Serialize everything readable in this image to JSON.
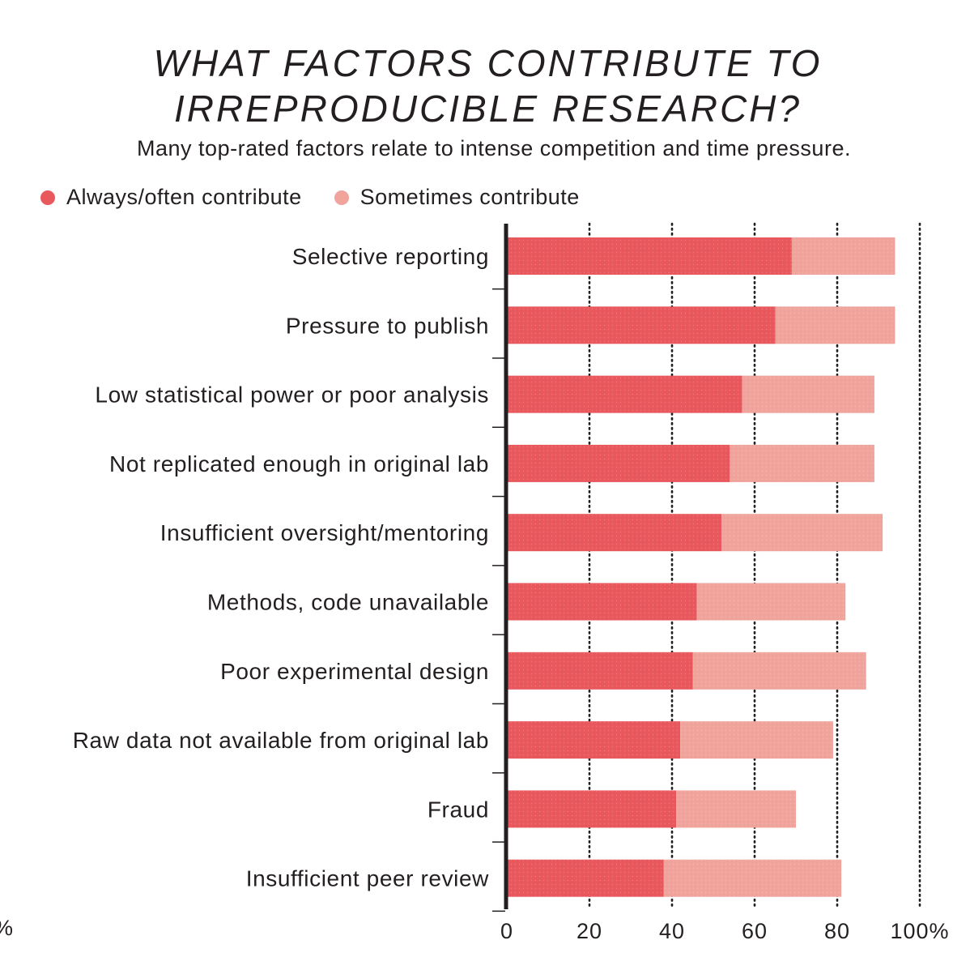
{
  "title_line1": "WHAT FACTORS CONTRIBUTE TO",
  "title_line2": "IRREPRODUCIBLE RESEARCH?",
  "subtitle": "Many top-rated factors relate to intense competition and time pressure.",
  "legend": {
    "always": "Always/often contribute",
    "sometimes": "Sometimes contribute"
  },
  "cut_label": "%",
  "colors": {
    "always": "#e8585d",
    "sometimes": "#f0a49c",
    "axis": "#231f20"
  },
  "chart_data": {
    "type": "bar",
    "orientation": "horizontal",
    "stacked": true,
    "title": "WHAT FACTORS CONTRIBUTE TO IRREPRODUCIBLE RESEARCH?",
    "subtitle": "Many top-rated factors relate to intense competition and time pressure.",
    "categories": [
      "Selective reporting",
      "Pressure to publish",
      "Low statistical power or poor analysis",
      "Not replicated enough in original lab",
      "Insufficient oversight/mentoring",
      "Methods, code unavailable",
      "Poor experimental design",
      "Raw data not available from original lab",
      "Fraud",
      "Insufficient peer review"
    ],
    "series": [
      {
        "name": "Always/often contribute",
        "values": [
          69,
          65,
          57,
          54,
          52,
          46,
          45,
          42,
          41,
          38
        ]
      },
      {
        "name": "Sometimes contribute",
        "values": [
          25,
          29,
          32,
          35,
          39,
          36,
          42,
          37,
          29,
          43
        ]
      }
    ],
    "xlim": [
      0,
      100
    ],
    "xticks": [
      "0",
      "20",
      "40",
      "60",
      "80",
      "100%"
    ],
    "tick_values": [
      0,
      20,
      40,
      60,
      80,
      100
    ],
    "grid": "dotted vertical",
    "legend_position": "top-left"
  }
}
